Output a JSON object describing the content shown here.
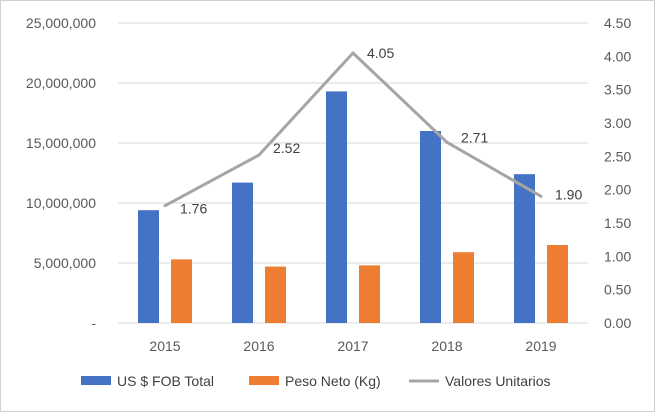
{
  "chart_data": {
    "type": "bar",
    "categories": [
      "2015",
      "2016",
      "2017",
      "2018",
      "2019"
    ],
    "series": [
      {
        "name": "US $ FOB Total",
        "kind": "bar",
        "axis": "left",
        "color": "#4472C4",
        "values": [
          9400000,
          11700000,
          19300000,
          16000000,
          12400000
        ]
      },
      {
        "name": "Peso Neto (Kg)",
        "kind": "bar",
        "axis": "left",
        "color": "#ED7D31",
        "values": [
          5300000,
          4700000,
          4800000,
          5900000,
          6500000
        ]
      },
      {
        "name": "Valores Unitarios",
        "kind": "line",
        "axis": "right",
        "color": "#A5A5A5",
        "values": [
          1.76,
          2.52,
          4.05,
          2.71,
          1.9
        ],
        "labels": [
          "1.76",
          "2.52",
          "4.05",
          "2.71",
          "1.90"
        ]
      }
    ],
    "ylim": [
      0,
      25000000
    ],
    "y2lim": [
      0,
      4.5
    ],
    "yticks": [
      "-",
      "5,000,000",
      "10,000,000",
      "15,000,000",
      "20,000,000",
      "25,000,000"
    ],
    "y2ticks": [
      "0.00",
      "0.50",
      "1.00",
      "1.50",
      "2.00",
      "2.50",
      "3.00",
      "3.50",
      "4.00",
      "4.50"
    ],
    "grid": true,
    "legend": "bottom"
  }
}
